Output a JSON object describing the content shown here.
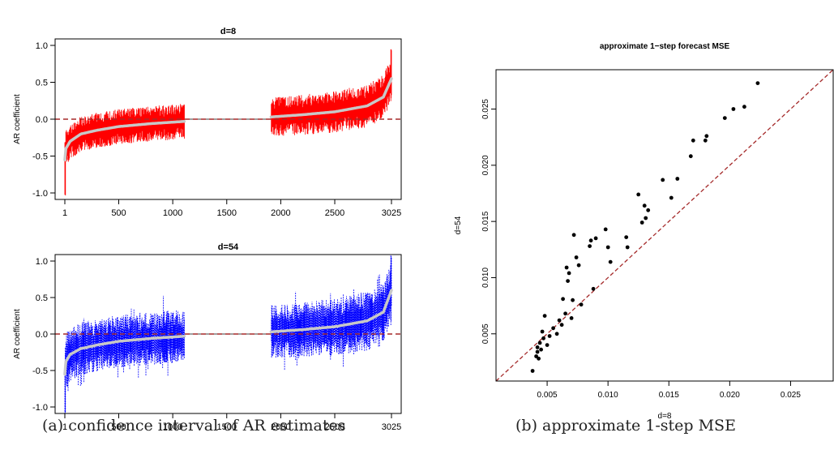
{
  "chart_data": [
    {
      "type": "line",
      "title": "d=8",
      "ylabel": "AR coefficient",
      "xlabel": "",
      "xlim": [
        1,
        3025
      ],
      "ylim": [
        -1.0,
        1.0
      ],
      "x_ticks": [
        1,
        500,
        1000,
        1500,
        2000,
        2500,
        3025
      ],
      "x_tick_labels": [
        "1",
        "500",
        "1000",
        "1500",
        "2000",
        "2500",
        "3025"
      ],
      "y_ticks": [
        -1.0,
        -0.5,
        0.0,
        0.5,
        1.0
      ],
      "y_tick_labels": [
        "-1.0",
        "-0.5",
        "0.0",
        "0.5",
        "1.0"
      ],
      "gap": [
        1110,
        1910
      ],
      "reference_line": 0,
      "band_color": "#ff0000",
      "estimate_color": "#c8c8c8",
      "reference_color": "#a52a2a",
      "estimate_curve": {
        "x": [
          1,
          10,
          50,
          150,
          300,
          500,
          800,
          1110,
          1910,
          2200,
          2500,
          2800,
          2950,
          3025
        ],
        "y": [
          -0.55,
          -0.4,
          -0.3,
          -0.2,
          -0.15,
          -0.1,
          -0.06,
          -0.03,
          0.03,
          0.06,
          0.1,
          0.18,
          0.3,
          0.55
        ]
      },
      "band_half_width": {
        "x": [
          1,
          1110,
          1910,
          3025
        ],
        "y": [
          0.2,
          0.2,
          0.22,
          0.25
        ]
      },
      "band_extremes": [
        -1.05,
        0.97
      ]
    },
    {
      "type": "line",
      "title": "d=54",
      "ylabel": "AR coefficient",
      "xlabel": "",
      "xlim": [
        1,
        3025
      ],
      "ylim": [
        -1.0,
        1.0
      ],
      "x_ticks": [
        1,
        500,
        1000,
        1500,
        2000,
        2500,
        3025
      ],
      "x_tick_labels": [
        "1",
        "500",
        "1000",
        "1500",
        "2000",
        "2500",
        "3025"
      ],
      "y_ticks": [
        -1.0,
        -0.5,
        0.0,
        0.5,
        1.0
      ],
      "y_tick_labels": [
        "-1.0",
        "-0.5",
        "0.0",
        "0.5",
        "1.0"
      ],
      "gap": [
        1110,
        1910
      ],
      "reference_line": 0,
      "band_color": "#0000ff",
      "estimate_color": "#c8c8c8",
      "reference_color": "#a52a2a",
      "estimate_curve": {
        "x": [
          1,
          10,
          50,
          150,
          300,
          500,
          800,
          1110,
          1910,
          2200,
          2500,
          2800,
          2950,
          3025
        ],
        "y": [
          -0.55,
          -0.38,
          -0.28,
          -0.2,
          -0.15,
          -0.1,
          -0.06,
          -0.03,
          0.03,
          0.06,
          0.1,
          0.18,
          0.3,
          0.6
        ]
      },
      "band_half_width": {
        "x": [
          1,
          1110,
          1910,
          3025
        ],
        "y": [
          0.3,
          0.3,
          0.3,
          0.35
        ]
      },
      "band_extremes": [
        -1.1,
        1.1
      ]
    },
    {
      "type": "scatter",
      "title": "approximate 1−step forecast MSE",
      "xlabel": "d=8",
      "ylabel": "d=54",
      "xlim": [
        0.0008,
        0.0285
      ],
      "ylim": [
        0.0008,
        0.0285
      ],
      "x_ticks": [
        0.005,
        0.01,
        0.015,
        0.02,
        0.025
      ],
      "x_tick_labels": [
        "0.005",
        "0.010",
        "0.015",
        "0.020",
        "0.025"
      ],
      "y_ticks": [
        0.005,
        0.01,
        0.015,
        0.02,
        0.025
      ],
      "y_tick_labels": [
        "0.005",
        "0.010",
        "0.015",
        "0.020",
        "0.025"
      ],
      "reference_line": "y = x",
      "reference_color": "#a52a2a",
      "points": [
        [
          0.0038,
          0.0017
        ],
        [
          0.0041,
          0.003
        ],
        [
          0.0042,
          0.0034
        ],
        [
          0.0042,
          0.0038
        ],
        [
          0.0043,
          0.0028
        ],
        [
          0.0044,
          0.0042
        ],
        [
          0.0045,
          0.0036
        ],
        [
          0.0046,
          0.0052
        ],
        [
          0.0047,
          0.0046
        ],
        [
          0.0048,
          0.0066
        ],
        [
          0.005,
          0.004
        ],
        [
          0.0052,
          0.0048
        ],
        [
          0.0055,
          0.0055
        ],
        [
          0.0058,
          0.005
        ],
        [
          0.006,
          0.0062
        ],
        [
          0.0062,
          0.0058
        ],
        [
          0.0063,
          0.0081
        ],
        [
          0.0065,
          0.0068
        ],
        [
          0.0066,
          0.0109
        ],
        [
          0.0067,
          0.0097
        ],
        [
          0.0068,
          0.0104
        ],
        [
          0.007,
          0.0064
        ],
        [
          0.0071,
          0.008
        ],
        [
          0.0072,
          0.0138
        ],
        [
          0.0074,
          0.0118
        ],
        [
          0.0076,
          0.0111
        ],
        [
          0.0078,
          0.0076
        ],
        [
          0.0085,
          0.0128
        ],
        [
          0.0086,
          0.0133
        ],
        [
          0.0088,
          0.009
        ],
        [
          0.009,
          0.0135
        ],
        [
          0.0098,
          0.0143
        ],
        [
          0.01,
          0.0127
        ],
        [
          0.0102,
          0.0114
        ],
        [
          0.0115,
          0.0136
        ],
        [
          0.0116,
          0.0127
        ],
        [
          0.0125,
          0.0174
        ],
        [
          0.0128,
          0.0149
        ],
        [
          0.013,
          0.0164
        ],
        [
          0.0131,
          0.0153
        ],
        [
          0.0133,
          0.016
        ],
        [
          0.0145,
          0.0187
        ],
        [
          0.0152,
          0.0171
        ],
        [
          0.0157,
          0.0188
        ],
        [
          0.0168,
          0.0208
        ],
        [
          0.017,
          0.0222
        ],
        [
          0.018,
          0.0222
        ],
        [
          0.0181,
          0.0226
        ],
        [
          0.0196,
          0.0242
        ],
        [
          0.0203,
          0.025
        ],
        [
          0.0212,
          0.0252
        ],
        [
          0.0223,
          0.0273
        ]
      ]
    }
  ],
  "captions": {
    "a": "(a) confidence interval of AR estimates",
    "b": "(b) approximate 1-step MSE"
  }
}
